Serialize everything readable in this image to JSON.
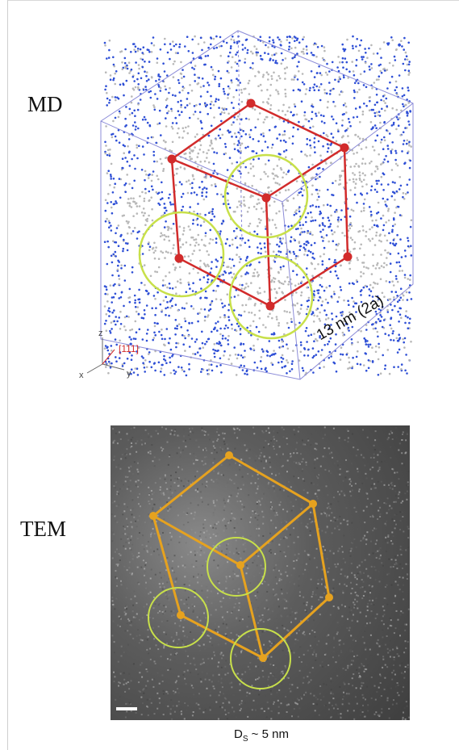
{
  "labels": {
    "md": "MD",
    "tem": "TEM"
  },
  "md_panel": {
    "axis_direction": "[111]",
    "axis_z": "z",
    "axis_x": "x",
    "axis_y": "y",
    "scale_label": "13 nm (2a)"
  },
  "tem_panel": {
    "caption_prefix": "D",
    "caption_sub": "S",
    "caption_suffix": " ~ 5 nm"
  },
  "colors": {
    "md_points": "#2e4fd6",
    "md_gray_points": "#b8b8b8",
    "md_lattice": "#d22b2b",
    "md_circles": "#c8e04a",
    "tem_lattice": "#e6a21f",
    "tem_circles": "#c8e04a",
    "box_edge": "#8c8cd8"
  }
}
